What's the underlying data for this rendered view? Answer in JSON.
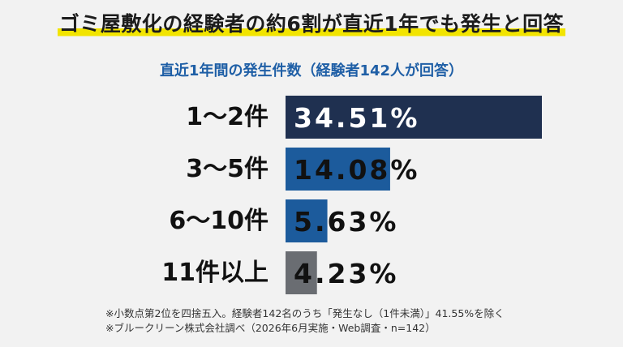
{
  "chart_data": {
    "type": "bar",
    "orientation": "horizontal",
    "title": "ゴミ屋敷化の経験者の約6割が直近1年でも発生と回答",
    "subtitle": "直近1年間の発生件数（経験者142人が回答）",
    "categories": [
      "1〜2件",
      "3〜5件",
      "6〜10件",
      "11件以上"
    ],
    "values": [
      34.51,
      14.08,
      5.63,
      4.23
    ],
    "value_labels": [
      "34.51%",
      "14.08%",
      "5.63%",
      "4.23%"
    ],
    "bar_colors": [
      "#1f3050",
      "#1c5b9c",
      "#1c5b9c",
      "#6a6d72"
    ],
    "xlim": [
      0,
      34.51
    ],
    "grid": false,
    "legend": "none"
  },
  "footnotes": [
    "※小数点第2位を四捨五入。経験者142名のうち「発生なし（1件未満）」41.55%を除く",
    "※ブルークリーン株式会社調べ（2026年6月実施・Web調査・n=142）"
  ]
}
